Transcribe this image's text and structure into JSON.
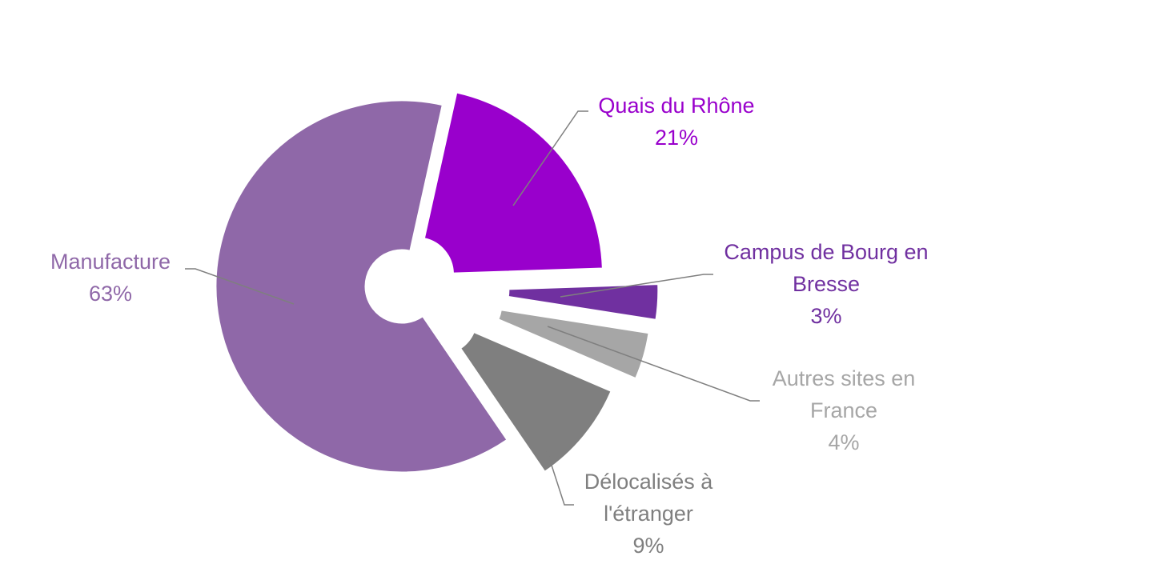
{
  "chart_data": {
    "type": "pie",
    "title": "",
    "slices": [
      {
        "label_lines": [
          "Quais du Rhône"
        ],
        "value_label": "21%",
        "value": 21,
        "color": "#9900CC",
        "label_color": "#9900CC"
      },
      {
        "label_lines": [
          "Campus de Bourg en",
          "Bresse"
        ],
        "value_label": "3%",
        "value": 3,
        "color": "#7030A0",
        "label_color": "#7030A0"
      },
      {
        "label_lines": [
          "Autres sites en",
          "France"
        ],
        "value_label": "4%",
        "value": 4,
        "color": "#A6A6A6",
        "label_color": "#A6A6A6"
      },
      {
        "label_lines": [
          "Délocalisés à",
          "l'étranger"
        ],
        "value_label": "9%",
        "value": 9,
        "color": "#7F7F7F",
        "label_color": "#7F7F7F"
      },
      {
        "label_lines": [
          "Manufacture"
        ],
        "value_label": "63%",
        "value": 63,
        "color": "#8F68A8",
        "label_color": "#8F68A8"
      }
    ],
    "leader_line_color": "#7F7F7F",
    "legend": "none"
  }
}
